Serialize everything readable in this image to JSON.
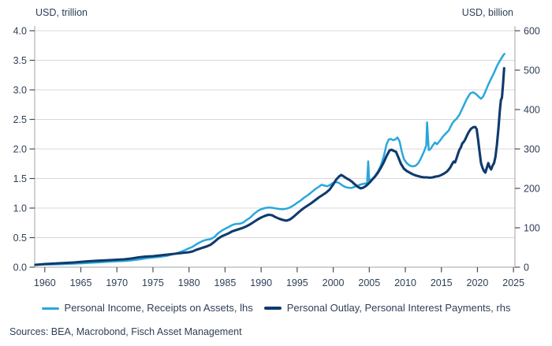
{
  "colors": {
    "series_light_blue": "#29A7DB",
    "series_navy": "#0F3A6D",
    "text": "#2F4058",
    "gridline": "#D8D8D8",
    "axis_line": "#A3A3A3",
    "tick_mark": "#4D4D4D",
    "background": "#FFFFFF"
  },
  "footer": {
    "sources": "Sources: BEA, Macrobond, Fisch Asset Management"
  },
  "chart_data": {
    "type": "line",
    "title": "",
    "grid": "horizontal",
    "legend_position": "bottom",
    "x_axis": {
      "range": [
        1958.6,
        2025.2
      ],
      "tick_labels": [
        "1960",
        "1965",
        "1970",
        "1975",
        "1980",
        "1985",
        "1990",
        "1995",
        "2000",
        "2005",
        "2010",
        "2015",
        "2020",
        "2025"
      ],
      "tick_values": [
        1960,
        1965,
        1970,
        1975,
        1980,
        1985,
        1990,
        1995,
        2000,
        2005,
        2010,
        2015,
        2020,
        2025
      ]
    },
    "left_axis": {
      "label": "USD, trillion",
      "range": [
        0,
        4
      ],
      "tick_labels": [
        "4.0",
        "3.5",
        "3.0",
        "2.5",
        "2.0",
        "1.5",
        "1.0",
        "0.5",
        "0.0"
      ],
      "tick_values": [
        4.0,
        3.5,
        3.0,
        2.5,
        2.0,
        1.5,
        1.0,
        0.5,
        0.0
      ]
    },
    "right_axis": {
      "label": "USD, billion",
      "range": [
        0,
        600
      ],
      "tick_labels": [
        "600",
        "500",
        "400",
        "300",
        "200",
        "100",
        "0"
      ],
      "tick_values": [
        600,
        500,
        400,
        300,
        200,
        100,
        0
      ]
    },
    "series": [
      {
        "name": "Personal Income, Receipts on Assets, lhs",
        "axis": "left",
        "color": "#29A7DB",
        "stroke_width": 2.5,
        "points": [
          [
            1958.7,
            0.04
          ],
          [
            1960,
            0.045
          ],
          [
            1961,
            0.047
          ],
          [
            1962,
            0.05
          ],
          [
            1963,
            0.055
          ],
          [
            1964,
            0.06
          ],
          [
            1965,
            0.065
          ],
          [
            1966,
            0.072
          ],
          [
            1967,
            0.078
          ],
          [
            1968,
            0.085
          ],
          [
            1969,
            0.095
          ],
          [
            1970,
            0.1
          ],
          [
            1971,
            0.105
          ],
          [
            1972,
            0.115
          ],
          [
            1973,
            0.13
          ],
          [
            1974,
            0.15
          ],
          [
            1975,
            0.165
          ],
          [
            1976,
            0.175
          ],
          [
            1977,
            0.195
          ],
          [
            1978,
            0.225
          ],
          [
            1979,
            0.265
          ],
          [
            1980,
            0.32
          ],
          [
            1980.5,
            0.345
          ],
          [
            1981,
            0.385
          ],
          [
            1981.5,
            0.42
          ],
          [
            1982,
            0.45
          ],
          [
            1982.5,
            0.465
          ],
          [
            1983,
            0.475
          ],
          [
            1983.5,
            0.51
          ],
          [
            1984,
            0.57
          ],
          [
            1984.5,
            0.615
          ],
          [
            1985,
            0.65
          ],
          [
            1985.5,
            0.68
          ],
          [
            1986,
            0.715
          ],
          [
            1986.4,
            0.73
          ],
          [
            1987,
            0.735
          ],
          [
            1987.5,
            0.755
          ],
          [
            1988,
            0.8
          ],
          [
            1988.5,
            0.84
          ],
          [
            1989,
            0.9
          ],
          [
            1989.5,
            0.95
          ],
          [
            1990,
            0.98
          ],
          [
            1990.5,
            1.0
          ],
          [
            1991,
            1.01
          ],
          [
            1991.5,
            1.005
          ],
          [
            1992,
            0.995
          ],
          [
            1992.5,
            0.985
          ],
          [
            1993,
            0.98
          ],
          [
            1993.5,
            0.99
          ],
          [
            1994,
            1.01
          ],
          [
            1994.5,
            1.045
          ],
          [
            1995,
            1.09
          ],
          [
            1995.5,
            1.13
          ],
          [
            1996,
            1.18
          ],
          [
            1996.5,
            1.22
          ],
          [
            1997,
            1.27
          ],
          [
            1997.5,
            1.32
          ],
          [
            1998,
            1.36
          ],
          [
            1998.4,
            1.395
          ],
          [
            1998.8,
            1.38
          ],
          [
            1999.2,
            1.37
          ],
          [
            1999.6,
            1.395
          ],
          [
            2000,
            1.43
          ],
          [
            2000.4,
            1.44
          ],
          [
            2000.8,
            1.425
          ],
          [
            2001.2,
            1.39
          ],
          [
            2001.6,
            1.36
          ],
          [
            2002,
            1.345
          ],
          [
            2002.5,
            1.34
          ],
          [
            2003,
            1.36
          ],
          [
            2003.5,
            1.385
          ],
          [
            2004,
            1.405
          ],
          [
            2004.4,
            1.415
          ],
          [
            2004.7,
            1.42
          ],
          [
            2004.85,
            1.79
          ],
          [
            2005,
            1.455
          ],
          [
            2005.4,
            1.49
          ],
          [
            2005.8,
            1.545
          ],
          [
            2006.2,
            1.62
          ],
          [
            2006.6,
            1.72
          ],
          [
            2007,
            1.87
          ],
          [
            2007.4,
            2.08
          ],
          [
            2007.7,
            2.16
          ],
          [
            2008,
            2.17
          ],
          [
            2008.3,
            2.15
          ],
          [
            2008.6,
            2.16
          ],
          [
            2008.9,
            2.195
          ],
          [
            2009.2,
            2.13
          ],
          [
            2009.5,
            1.96
          ],
          [
            2009.8,
            1.83
          ],
          [
            2010.2,
            1.76
          ],
          [
            2010.6,
            1.72
          ],
          [
            2011,
            1.705
          ],
          [
            2011.4,
            1.715
          ],
          [
            2011.8,
            1.76
          ],
          [
            2012.2,
            1.85
          ],
          [
            2012.6,
            1.96
          ],
          [
            2012.9,
            2.06
          ],
          [
            2013.02,
            2.45
          ],
          [
            2013.25,
            1.98
          ],
          [
            2013.5,
            2.0
          ],
          [
            2013.8,
            2.06
          ],
          [
            2014.1,
            2.11
          ],
          [
            2014.4,
            2.08
          ],
          [
            2014.8,
            2.14
          ],
          [
            2015.2,
            2.21
          ],
          [
            2015.6,
            2.26
          ],
          [
            2016,
            2.31
          ],
          [
            2016.5,
            2.43
          ],
          [
            2016.8,
            2.48
          ],
          [
            2017.1,
            2.51
          ],
          [
            2017.5,
            2.58
          ],
          [
            2018,
            2.71
          ],
          [
            2018.5,
            2.84
          ],
          [
            2019,
            2.94
          ],
          [
            2019.4,
            2.96
          ],
          [
            2019.8,
            2.93
          ],
          [
            2020.2,
            2.88
          ],
          [
            2020.5,
            2.85
          ],
          [
            2020.8,
            2.89
          ],
          [
            2021.1,
            2.97
          ],
          [
            2021.5,
            3.09
          ],
          [
            2021.9,
            3.19
          ],
          [
            2022.3,
            3.29
          ],
          [
            2022.7,
            3.4
          ],
          [
            2023,
            3.47
          ],
          [
            2023.3,
            3.53
          ],
          [
            2023.6,
            3.59
          ],
          [
            2023.75,
            3.61
          ]
        ]
      },
      {
        "name": "Personal Outlay, Personal Interest Payments, rhs",
        "axis": "right",
        "color": "#0F3A6D",
        "stroke_width": 3.1,
        "points": [
          [
            1958.7,
            6
          ],
          [
            1960,
            8
          ],
          [
            1962,
            10
          ],
          [
            1964,
            12
          ],
          [
            1966,
            15
          ],
          [
            1968,
            17
          ],
          [
            1970,
            19
          ],
          [
            1971,
            20
          ],
          [
            1972,
            22
          ],
          [
            1973,
            25
          ],
          [
            1974,
            27
          ],
          [
            1975,
            28
          ],
          [
            1976,
            30
          ],
          [
            1977,
            32
          ],
          [
            1978,
            34
          ],
          [
            1979,
            36
          ],
          [
            1980,
            38
          ],
          [
            1980.5,
            40
          ],
          [
            1981,
            44
          ],
          [
            1981.5,
            47
          ],
          [
            1982,
            50
          ],
          [
            1982.5,
            53
          ],
          [
            1983,
            57
          ],
          [
            1983.5,
            64
          ],
          [
            1984,
            72
          ],
          [
            1984.5,
            78
          ],
          [
            1985,
            82
          ],
          [
            1985.5,
            86
          ],
          [
            1986,
            91
          ],
          [
            1986.5,
            94
          ],
          [
            1987,
            97
          ],
          [
            1987.5,
            100
          ],
          [
            1988,
            104
          ],
          [
            1988.5,
            109
          ],
          [
            1989,
            115
          ],
          [
            1989.5,
            121
          ],
          [
            1990,
            126
          ],
          [
            1990.5,
            130
          ],
          [
            1991,
            133
          ],
          [
            1991.5,
            132
          ],
          [
            1992,
            127
          ],
          [
            1992.5,
            123
          ],
          [
            1993,
            120
          ],
          [
            1993.5,
            118
          ],
          [
            1994,
            121
          ],
          [
            1994.5,
            128
          ],
          [
            1995,
            136
          ],
          [
            1995.5,
            144
          ],
          [
            1996,
            151
          ],
          [
            1996.5,
            157
          ],
          [
            1997,
            163
          ],
          [
            1997.5,
            170
          ],
          [
            1998,
            177
          ],
          [
            1998.5,
            183
          ],
          [
            1999,
            189
          ],
          [
            1999.5,
            197
          ],
          [
            2000,
            210
          ],
          [
            2000.4,
            222
          ],
          [
            2000.8,
            230
          ],
          [
            2001.1,
            234
          ],
          [
            2001.4,
            231
          ],
          [
            2001.8,
            226
          ],
          [
            2002.2,
            222
          ],
          [
            2002.6,
            217
          ],
          [
            2003,
            210
          ],
          [
            2003.4,
            204
          ],
          [
            2003.8,
            200
          ],
          [
            2004.2,
            202
          ],
          [
            2004.6,
            207
          ],
          [
            2005,
            214
          ],
          [
            2005.4,
            222
          ],
          [
            2005.8,
            230
          ],
          [
            2006.2,
            240
          ],
          [
            2006.6,
            252
          ],
          [
            2007,
            266
          ],
          [
            2007.4,
            282
          ],
          [
            2007.8,
            296
          ],
          [
            2008.1,
            298
          ],
          [
            2008.4,
            295
          ],
          [
            2008.7,
            293
          ],
          [
            2009,
            280
          ],
          [
            2009.4,
            262
          ],
          [
            2009.8,
            250
          ],
          [
            2010.2,
            244
          ],
          [
            2010.6,
            240
          ],
          [
            2011,
            236
          ],
          [
            2011.4,
            233
          ],
          [
            2011.8,
            231
          ],
          [
            2012.2,
            229
          ],
          [
            2012.6,
            228
          ],
          [
            2013,
            228
          ],
          [
            2013.4,
            227
          ],
          [
            2013.8,
            228
          ],
          [
            2014.2,
            230
          ],
          [
            2014.6,
            231
          ],
          [
            2015,
            234
          ],
          [
            2015.4,
            238
          ],
          [
            2015.8,
            243
          ],
          [
            2016.2,
            252
          ],
          [
            2016.5,
            262
          ],
          [
            2016.7,
            268
          ],
          [
            2016.9,
            266
          ],
          [
            2017.1,
            276
          ],
          [
            2017.3,
            288
          ],
          [
            2017.5,
            298
          ],
          [
            2017.7,
            304
          ],
          [
            2017.9,
            314
          ],
          [
            2018.1,
            318
          ],
          [
            2018.3,
            324
          ],
          [
            2018.5,
            332
          ],
          [
            2018.7,
            340
          ],
          [
            2018.9,
            346
          ],
          [
            2019.1,
            351
          ],
          [
            2019.4,
            355
          ],
          [
            2019.7,
            356
          ],
          [
            2019.9,
            350
          ],
          [
            2020.1,
            322
          ],
          [
            2020.3,
            292
          ],
          [
            2020.5,
            264
          ],
          [
            2020.7,
            252
          ],
          [
            2020.9,
            244
          ],
          [
            2021.1,
            240
          ],
          [
            2021.3,
            252
          ],
          [
            2021.5,
            264
          ],
          [
            2021.7,
            254
          ],
          [
            2021.9,
            248
          ],
          [
            2022.1,
            258
          ],
          [
            2022.3,
            264
          ],
          [
            2022.5,
            280
          ],
          [
            2022.7,
            310
          ],
          [
            2022.9,
            350
          ],
          [
            2023.1,
            396
          ],
          [
            2023.25,
            424
          ],
          [
            2023.4,
            430
          ],
          [
            2023.55,
            464
          ],
          [
            2023.7,
            505
          ]
        ]
      }
    ]
  }
}
